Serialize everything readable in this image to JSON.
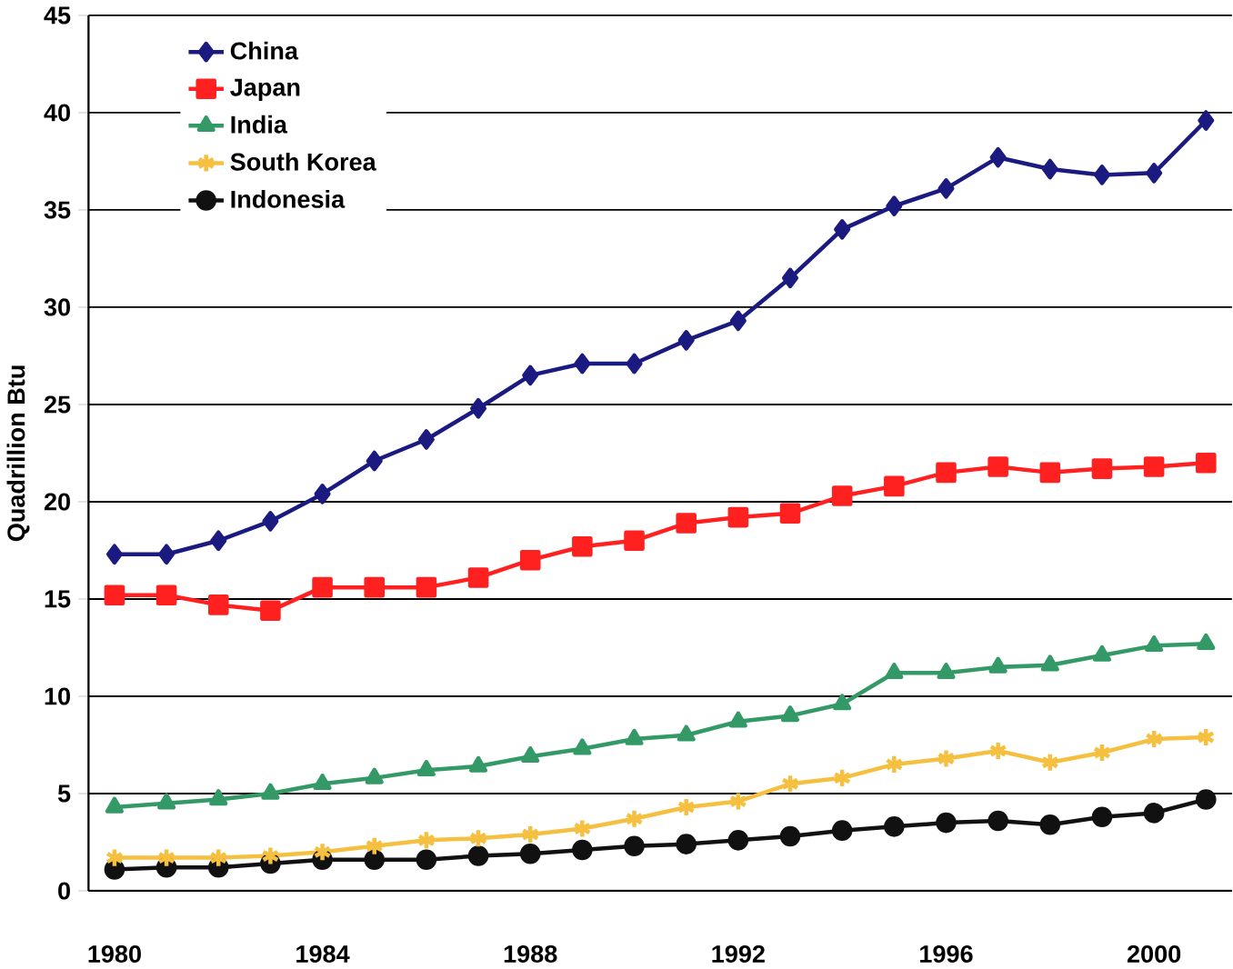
{
  "chart_data": {
    "type": "line",
    "ylabel": "Quadrillion Btu",
    "categories": [
      "1980",
      null,
      null,
      null,
      "1984",
      null,
      null,
      null,
      "1988",
      null,
      null,
      null,
      "1992",
      null,
      null,
      null,
      "1996",
      null,
      null,
      null,
      "2000",
      null
    ],
    "series": [
      {
        "name": "China",
        "color": "#1a1a80",
        "marker": "diamond",
        "values": [
          17.3,
          17.3,
          18,
          19,
          20.4,
          22.1,
          23.2,
          24.8,
          26.5,
          27.1,
          27.1,
          28.3,
          29.3,
          31.5,
          34,
          35.2,
          36.1,
          37.7,
          37.1,
          36.8,
          36.9,
          39.6
        ]
      },
      {
        "name": "Japan",
        "color": "#ff2020",
        "marker": "square",
        "values": [
          15.2,
          15.2,
          14.7,
          14.4,
          15.6,
          15.6,
          15.6,
          16.1,
          17,
          17.7,
          18,
          18.9,
          19.2,
          19.4,
          20.3,
          20.8,
          21.5,
          21.8,
          21.5,
          21.7,
          21.8,
          22
        ]
      },
      {
        "name": "India",
        "color": "#339966",
        "marker": "triangle",
        "values": [
          4.3,
          4.5,
          4.7,
          5,
          5.5,
          5.8,
          6.2,
          6.4,
          6.9,
          7.3,
          7.8,
          8,
          8.7,
          9,
          9.6,
          11.2,
          11.2,
          11.5,
          11.6,
          12.1,
          12.6,
          12.7
        ]
      },
      {
        "name": "South Korea",
        "color": "#f5c040",
        "marker": "cross",
        "values": [
          1.7,
          1.7,
          1.7,
          1.8,
          2,
          2.3,
          2.6,
          2.7,
          2.9,
          3.2,
          3.7,
          4.3,
          4.6,
          5.5,
          5.8,
          6.5,
          6.8,
          7.2,
          6.6,
          7.1,
          7.8,
          7.9
        ]
      },
      {
        "name": "Indonesia",
        "color": "#111111",
        "marker": "circle",
        "values": [
          1.1,
          1.2,
          1.2,
          1.4,
          1.6,
          1.6,
          1.6,
          1.8,
          1.9,
          2.1,
          2.3,
          2.4,
          2.6,
          2.8,
          3.1,
          3.3,
          3.5,
          3.6,
          3.4,
          3.8,
          4,
          4.7
        ]
      }
    ],
    "ylim": [
      0,
      45
    ],
    "yticks": [
      0,
      5,
      10,
      15,
      20,
      25,
      30,
      35,
      40,
      45
    ],
    "grid": "y",
    "legend": "top left"
  }
}
